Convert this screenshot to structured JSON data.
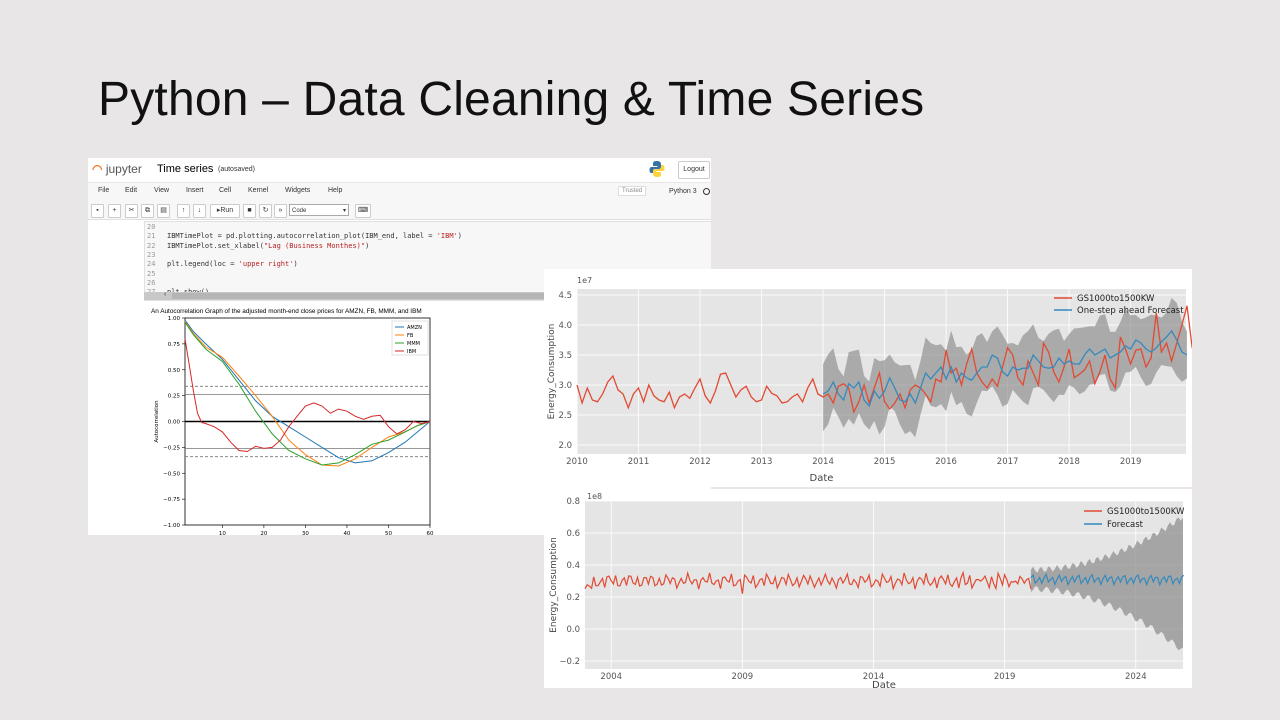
{
  "slide": {
    "title": "Python – Data Cleaning & Time Series"
  },
  "notebook": {
    "logo_text": "jupyter",
    "name": "Time series",
    "autosaved": "(autosaved)",
    "logout_label": "Logout",
    "menu": [
      "File",
      "Edit",
      "View",
      "Insert",
      "Cell",
      "Kernel",
      "Widgets",
      "Help"
    ],
    "trusted_label": "Trusted",
    "kernel_label": "Python 3",
    "toolbar": {
      "run_label": "Run",
      "cell_type": "Code"
    },
    "code_lines": [
      {
        "num": "20",
        "code": ""
      },
      {
        "num": "21",
        "code": "IBMTimePlot = pd.plotting.autocorrelation_plot(IBM_end, label = ",
        "str": "'IBM'",
        "tail": ")"
      },
      {
        "num": "22",
        "code": "IBMTimePlot.set_xlabel(",
        "str": "\"Lag (Business Monthes)\"",
        "tail": ")"
      },
      {
        "num": "23",
        "code": ""
      },
      {
        "num": "24",
        "code": "plt.legend(loc = ",
        "str": "'upper right'",
        "tail": ")"
      },
      {
        "num": "25",
        "code": ""
      },
      {
        "num": "26",
        "code": ""
      },
      {
        "num": "27",
        "code": "plt.show()"
      }
    ]
  },
  "chart_data": [
    {
      "type": "line",
      "title": "An Autocorrelation Graph of the adjusted month-end close prices for AMZN, FB, MMM, and IBM",
      "xlabel": "",
      "ylabel": "Autocorrelation",
      "xlim": [
        1,
        60
      ],
      "ylim": [
        -1.0,
        1.0
      ],
      "x_ticks": [
        "10",
        "20",
        "30",
        "40",
        "50",
        "60"
      ],
      "y_ticks": [
        "1.00",
        "0.75",
        "0.50",
        "0.25",
        "0.00",
        "−0.25",
        "−0.50",
        "−0.75",
        "−1.00"
      ],
      "legend_position": "top-right",
      "confidence_bands": [
        0.26,
        0.34
      ],
      "series": [
        {
          "name": "AMZN",
          "color": "#1f77b4",
          "x": [
            1,
            3,
            6,
            10,
            14,
            18,
            22,
            26,
            30,
            34,
            38,
            42,
            46,
            50,
            54,
            57,
            60
          ],
          "y": [
            0.98,
            0.87,
            0.75,
            0.6,
            0.4,
            0.2,
            0.05,
            -0.05,
            -0.15,
            -0.25,
            -0.35,
            -0.4,
            -0.38,
            -0.3,
            -0.2,
            -0.1,
            0
          ]
        },
        {
          "name": "FB",
          "color": "#ff7f0e",
          "x": [
            1,
            3,
            6,
            10,
            14,
            18,
            22,
            26,
            30,
            34,
            38,
            42,
            46,
            50,
            54,
            57,
            60
          ],
          "y": [
            0.97,
            0.85,
            0.72,
            0.62,
            0.44,
            0.25,
            0.05,
            -0.18,
            -0.32,
            -0.42,
            -0.43,
            -0.36,
            -0.25,
            -0.15,
            -0.1,
            -0.04,
            0
          ]
        },
        {
          "name": "MMM",
          "color": "#2ca02c",
          "x": [
            1,
            3,
            6,
            10,
            14,
            18,
            22,
            26,
            30,
            34,
            38,
            42,
            46,
            50,
            54,
            57,
            60
          ],
          "y": [
            0.96,
            0.84,
            0.7,
            0.58,
            0.36,
            0.1,
            -0.12,
            -0.28,
            -0.36,
            -0.42,
            -0.4,
            -0.32,
            -0.22,
            -0.18,
            -0.1,
            -0.04,
            0
          ]
        },
        {
          "name": "IBM",
          "color": "#d62728",
          "x": [
            1,
            2,
            3,
            4,
            5,
            6,
            8,
            10,
            12,
            14,
            16,
            18,
            20,
            22,
            24,
            26,
            28,
            30,
            32,
            34,
            36,
            38,
            40,
            42,
            44,
            46,
            48,
            50,
            52,
            54,
            56,
            58,
            60
          ],
          "y": [
            0.8,
            0.55,
            0.3,
            0.08,
            -0.01,
            -0.02,
            -0.05,
            -0.1,
            -0.2,
            -0.28,
            -0.29,
            -0.24,
            -0.26,
            -0.25,
            -0.18,
            -0.05,
            0.05,
            0.15,
            0.18,
            0.15,
            0.08,
            0.12,
            0.1,
            0.05,
            0.02,
            0.05,
            0.06,
            -0.05,
            -0.12,
            -0.08,
            0.0,
            -0.02,
            0.0
          ]
        }
      ]
    },
    {
      "type": "line",
      "xlabel": "Date",
      "ylabel": "Energy_Consumption",
      "y_multiplier": "1e7",
      "xlim": [
        2010,
        2019.9
      ],
      "ylim": [
        1.85,
        4.6
      ],
      "x_ticks": [
        "2010",
        "2011",
        "2012",
        "2013",
        "2014",
        "2015",
        "2016",
        "2017",
        "2018",
        "2019"
      ],
      "y_ticks": [
        "2.0",
        "2.5",
        "3.0",
        "3.5",
        "4.0",
        "4.5"
      ],
      "legend_position": "top-right",
      "series": [
        {
          "name": "GS1000to1500KW",
          "color": "#e24a33"
        },
        {
          "name": "One-step ahead Forecast",
          "color": "#348abd"
        }
      ],
      "observed": {
        "start": 2010,
        "step_months": 1,
        "y": [
          3.0,
          2.7,
          2.95,
          2.75,
          2.72,
          2.85,
          3.05,
          3.15,
          2.92,
          2.85,
          2.62,
          2.85,
          2.95,
          2.72,
          3.0,
          2.82,
          2.75,
          2.72,
          2.88,
          2.62,
          2.8,
          2.85,
          2.78,
          2.95,
          3.1,
          2.82,
          2.7,
          2.9,
          3.18,
          3.2,
          3.0,
          2.8,
          2.92,
          2.98,
          2.8,
          2.72,
          2.75,
          2.98,
          2.86,
          2.82,
          2.7,
          2.72,
          2.8,
          2.85,
          2.72,
          2.95,
          3.1,
          2.85,
          2.8,
          2.85,
          2.7,
          2.98,
          3.02,
          2.95,
          2.55,
          2.72,
          3.0,
          2.7,
          2.95,
          3.2,
          2.72,
          2.6,
          2.7,
          2.85,
          2.62,
          2.92,
          3.0,
          2.95,
          2.85,
          2.72,
          3.1,
          3.05,
          3.58,
          3.2,
          3.28,
          3.0,
          3.35,
          3.6,
          3.2,
          3.05,
          2.95,
          3.1,
          2.98,
          3.3,
          3.62,
          3.5,
          3.12,
          3.0,
          3.4,
          3.2,
          3.0,
          3.7,
          3.55,
          3.22,
          3.05,
          3.3,
          3.6,
          3.12,
          3.18,
          3.25,
          3.4,
          3.02,
          3.22,
          3.5,
          3.1,
          2.95,
          3.8,
          3.6,
          3.35,
          3.58,
          3.6,
          3.3,
          3.45,
          4.2,
          3.55,
          3.7,
          3.4,
          3.7,
          4.0,
          4.32,
          3.62,
          3.58,
          3.1,
          3.45,
          3.62,
          3.1,
          3.3,
          3.55,
          3.3,
          3.05,
          3.3,
          3.8,
          3.2,
          3.02,
          3.12,
          3.05,
          3.25,
          3.3
        ]
      },
      "forecast": {
        "start": 2014,
        "step_months": 1,
        "y": [
          2.85,
          2.9,
          3.05,
          2.85,
          2.75,
          3.02,
          2.95,
          3.05,
          2.75,
          2.65,
          2.9,
          2.78,
          2.9,
          3.12,
          2.95,
          2.75,
          2.72,
          2.85,
          2.7,
          2.95,
          3.2,
          3.1,
          3.2,
          3.3,
          3.1,
          3.3,
          3.05,
          3.2,
          3.12,
          3.08,
          3.2,
          3.3,
          3.3,
          3.5,
          3.45,
          3.22,
          3.15,
          3.3,
          3.25,
          3.28,
          3.28,
          3.5,
          3.4,
          3.3,
          3.28,
          3.3,
          3.45,
          3.35,
          3.4,
          3.35,
          3.35,
          3.5,
          3.6,
          3.5,
          3.55,
          3.6,
          3.45,
          3.5,
          3.55,
          3.65,
          3.6,
          3.75,
          3.7,
          3.6,
          3.55,
          3.62,
          3.72,
          3.8,
          3.9,
          3.75,
          3.55,
          3.5
        ],
        "band": 0.5
      }
    },
    {
      "type": "line",
      "xlabel": "Date",
      "ylabel": "Energy_Consumption",
      "y_multiplier": "1e8",
      "xlim": [
        2003,
        2025.8
      ],
      "ylim": [
        -0.25,
        0.8
      ],
      "x_ticks": [
        "2004",
        "2009",
        "2014",
        "2019",
        "2024"
      ],
      "y_ticks": [
        "0.8",
        "0.6",
        "0.4",
        "0.2",
        "0.0",
        "−0.2"
      ],
      "legend_position": "top-right",
      "series": [
        {
          "name": "GS1000to1500KW",
          "color": "#e24a33"
        },
        {
          "name": "Forecast",
          "color": "#348abd"
        }
      ],
      "observed": {
        "start": 2003,
        "end": 2020,
        "mean": 0.3,
        "amplitude": 0.03
      },
      "forecast": {
        "start": 2020,
        "end": 2025.8,
        "mean": 0.31,
        "amplitude": 0.025,
        "band_start": 0.06,
        "band_end_upper": 0.74,
        "band_end_lower": -0.18
      }
    }
  ]
}
